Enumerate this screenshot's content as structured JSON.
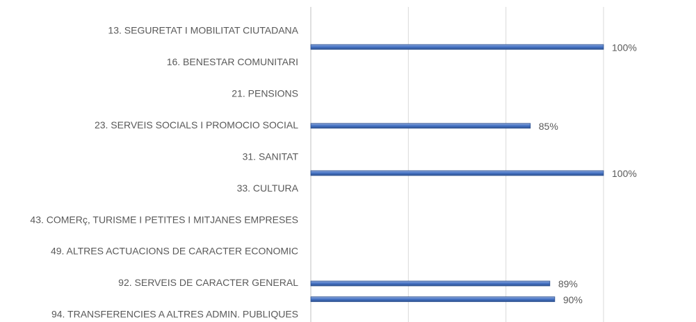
{
  "chart_data": {
    "type": "barh",
    "categories": [
      "13. SEGURETAT I MOBILITAT CIUTADANA",
      null,
      "16. BENESTAR COMUNITARI",
      null,
      "21. PENSIONS",
      null,
      "23. SERVEIS SOCIALS I PROMOCIO SOCIAL",
      null,
      "31. SANITAT",
      null,
      "33. CULTURA",
      null,
      "43. COMERç, TURISME I PETITES I MITJANES EMPRESES",
      null,
      "49. ALTRES ACTUACIONS DE CARACTER ECONOMIC",
      null,
      "92. SERVEIS DE CARACTER GENERAL",
      null,
      "94. TRANSFERENCIES A ALTRES ADMIN. PUBLIQUES"
    ],
    "values": [
      null,
      100,
      null,
      null,
      null,
      null,
      85,
      null,
      null,
      100,
      null,
      null,
      null,
      null,
      null,
      null,
      89,
      90,
      null
    ],
    "value_labels": [
      null,
      "100%",
      null,
      null,
      null,
      null,
      "85%",
      null,
      null,
      "100%",
      null,
      null,
      null,
      null,
      null,
      null,
      "89%",
      "90%",
      null
    ],
    "color": "#4472c4",
    "xlim": [
      40,
      100
    ],
    "xticks": [
      40,
      60,
      80,
      100
    ],
    "grid": true
  }
}
